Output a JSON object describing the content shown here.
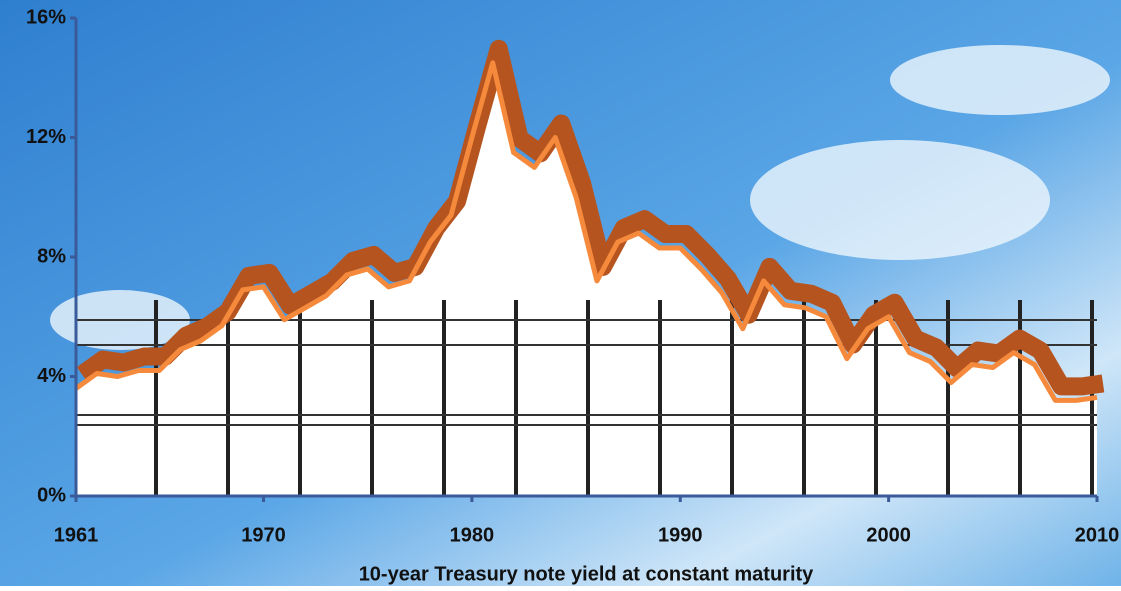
{
  "chart_data": {
    "type": "line",
    "x_label": "10-year Treasury note yield at constant maturity",
    "x": [
      1961,
      1962,
      1963,
      1964,
      1965,
      1966,
      1967,
      1968,
      1969,
      1970,
      1971,
      1972,
      1973,
      1974,
      1975,
      1976,
      1977,
      1978,
      1979,
      1980,
      1981,
      1982,
      1983,
      1984,
      1985,
      1986,
      1987,
      1988,
      1989,
      1990,
      1991,
      1992,
      1993,
      1994,
      1995,
      1996,
      1997,
      1998,
      1999,
      2000,
      2001,
      2002,
      2003,
      2004,
      2005,
      2006,
      2007,
      2008,
      2009,
      2010
    ],
    "series": [
      {
        "color": "#f58a3c",
        "values": [
          3.6,
          4.1,
          4.0,
          4.2,
          4.2,
          4.9,
          5.2,
          5.7,
          6.9,
          7.0,
          5.9,
          6.3,
          6.7,
          7.4,
          7.6,
          7.0,
          7.2,
          8.5,
          9.4,
          12.0,
          14.5,
          11.5,
          11.0,
          12.0,
          10.0,
          7.2,
          8.5,
          8.8,
          8.3,
          8.3,
          7.6,
          6.8,
          5.6,
          7.2,
          6.4,
          6.3,
          6.0,
          4.6,
          5.6,
          6.0,
          4.8,
          4.5,
          3.8,
          4.4,
          4.3,
          4.8,
          4.4,
          3.2,
          3.2,
          3.3
        ]
      }
    ],
    "xlim": [
      1961,
      2010
    ],
    "xticks": [
      1961,
      1970,
      1980,
      1990,
      2000,
      2010
    ],
    "ylim": [
      0,
      16
    ],
    "yticks": [
      {
        "value": 0,
        "label": "0%"
      },
      {
        "value": 4,
        "label": "4%"
      },
      {
        "value": 8,
        "label": "8%"
      },
      {
        "value": 12,
        "label": "12%"
      },
      {
        "value": 16,
        "label": "16%"
      }
    ]
  }
}
